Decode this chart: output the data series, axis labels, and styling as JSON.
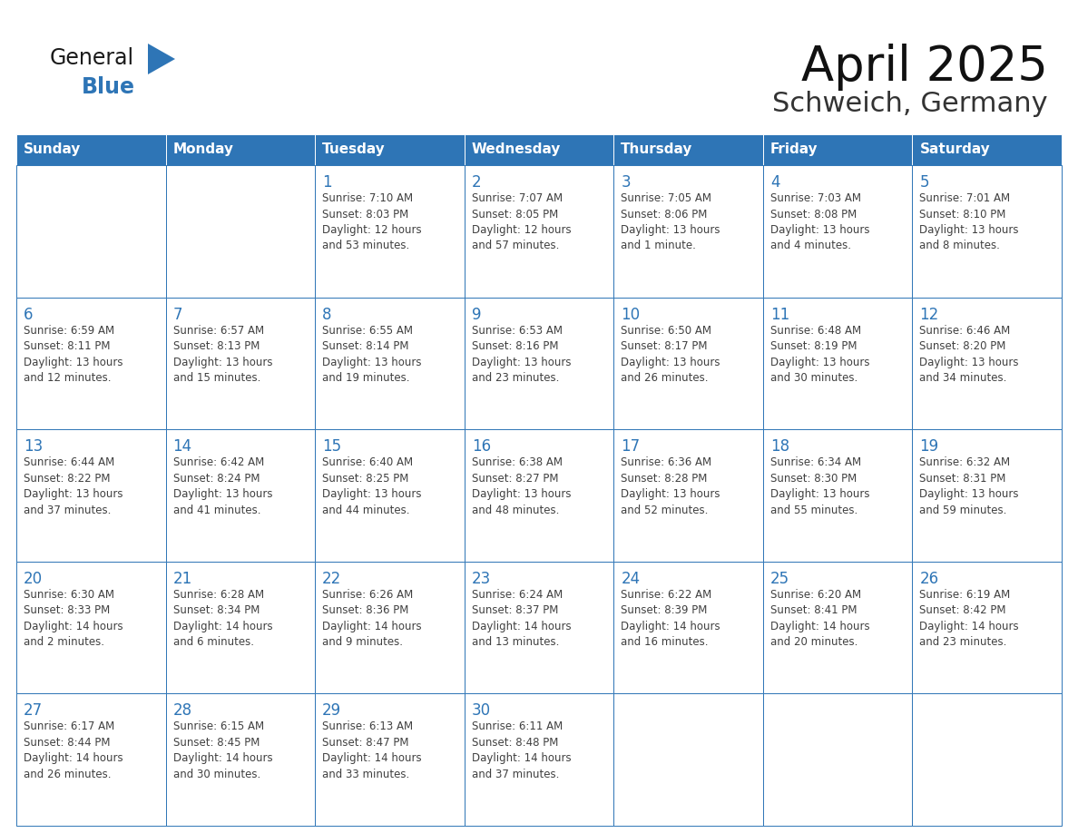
{
  "title": "April 2025",
  "subtitle": "Schweich, Germany",
  "header_bg": "#2E75B6",
  "header_text_color": "#FFFFFF",
  "border_color": "#2E75B6",
  "day_number_color": "#2E75B6",
  "cell_text_color": "#404040",
  "title_color": "#111111",
  "subtitle_color": "#333333",
  "days_of_week": [
    "Sunday",
    "Monday",
    "Tuesday",
    "Wednesday",
    "Thursday",
    "Friday",
    "Saturday"
  ],
  "calendar": [
    [
      {
        "day": "",
        "text": ""
      },
      {
        "day": "",
        "text": ""
      },
      {
        "day": "1",
        "text": "Sunrise: 7:10 AM\nSunset: 8:03 PM\nDaylight: 12 hours\nand 53 minutes."
      },
      {
        "day": "2",
        "text": "Sunrise: 7:07 AM\nSunset: 8:05 PM\nDaylight: 12 hours\nand 57 minutes."
      },
      {
        "day": "3",
        "text": "Sunrise: 7:05 AM\nSunset: 8:06 PM\nDaylight: 13 hours\nand 1 minute."
      },
      {
        "day": "4",
        "text": "Sunrise: 7:03 AM\nSunset: 8:08 PM\nDaylight: 13 hours\nand 4 minutes."
      },
      {
        "day": "5",
        "text": "Sunrise: 7:01 AM\nSunset: 8:10 PM\nDaylight: 13 hours\nand 8 minutes."
      }
    ],
    [
      {
        "day": "6",
        "text": "Sunrise: 6:59 AM\nSunset: 8:11 PM\nDaylight: 13 hours\nand 12 minutes."
      },
      {
        "day": "7",
        "text": "Sunrise: 6:57 AM\nSunset: 8:13 PM\nDaylight: 13 hours\nand 15 minutes."
      },
      {
        "day": "8",
        "text": "Sunrise: 6:55 AM\nSunset: 8:14 PM\nDaylight: 13 hours\nand 19 minutes."
      },
      {
        "day": "9",
        "text": "Sunrise: 6:53 AM\nSunset: 8:16 PM\nDaylight: 13 hours\nand 23 minutes."
      },
      {
        "day": "10",
        "text": "Sunrise: 6:50 AM\nSunset: 8:17 PM\nDaylight: 13 hours\nand 26 minutes."
      },
      {
        "day": "11",
        "text": "Sunrise: 6:48 AM\nSunset: 8:19 PM\nDaylight: 13 hours\nand 30 minutes."
      },
      {
        "day": "12",
        "text": "Sunrise: 6:46 AM\nSunset: 8:20 PM\nDaylight: 13 hours\nand 34 minutes."
      }
    ],
    [
      {
        "day": "13",
        "text": "Sunrise: 6:44 AM\nSunset: 8:22 PM\nDaylight: 13 hours\nand 37 minutes."
      },
      {
        "day": "14",
        "text": "Sunrise: 6:42 AM\nSunset: 8:24 PM\nDaylight: 13 hours\nand 41 minutes."
      },
      {
        "day": "15",
        "text": "Sunrise: 6:40 AM\nSunset: 8:25 PM\nDaylight: 13 hours\nand 44 minutes."
      },
      {
        "day": "16",
        "text": "Sunrise: 6:38 AM\nSunset: 8:27 PM\nDaylight: 13 hours\nand 48 minutes."
      },
      {
        "day": "17",
        "text": "Sunrise: 6:36 AM\nSunset: 8:28 PM\nDaylight: 13 hours\nand 52 minutes."
      },
      {
        "day": "18",
        "text": "Sunrise: 6:34 AM\nSunset: 8:30 PM\nDaylight: 13 hours\nand 55 minutes."
      },
      {
        "day": "19",
        "text": "Sunrise: 6:32 AM\nSunset: 8:31 PM\nDaylight: 13 hours\nand 59 minutes."
      }
    ],
    [
      {
        "day": "20",
        "text": "Sunrise: 6:30 AM\nSunset: 8:33 PM\nDaylight: 14 hours\nand 2 minutes."
      },
      {
        "day": "21",
        "text": "Sunrise: 6:28 AM\nSunset: 8:34 PM\nDaylight: 14 hours\nand 6 minutes."
      },
      {
        "day": "22",
        "text": "Sunrise: 6:26 AM\nSunset: 8:36 PM\nDaylight: 14 hours\nand 9 minutes."
      },
      {
        "day": "23",
        "text": "Sunrise: 6:24 AM\nSunset: 8:37 PM\nDaylight: 14 hours\nand 13 minutes."
      },
      {
        "day": "24",
        "text": "Sunrise: 6:22 AM\nSunset: 8:39 PM\nDaylight: 14 hours\nand 16 minutes."
      },
      {
        "day": "25",
        "text": "Sunrise: 6:20 AM\nSunset: 8:41 PM\nDaylight: 14 hours\nand 20 minutes."
      },
      {
        "day": "26",
        "text": "Sunrise: 6:19 AM\nSunset: 8:42 PM\nDaylight: 14 hours\nand 23 minutes."
      }
    ],
    [
      {
        "day": "27",
        "text": "Sunrise: 6:17 AM\nSunset: 8:44 PM\nDaylight: 14 hours\nand 26 minutes."
      },
      {
        "day": "28",
        "text": "Sunrise: 6:15 AM\nSunset: 8:45 PM\nDaylight: 14 hours\nand 30 minutes."
      },
      {
        "day": "29",
        "text": "Sunrise: 6:13 AM\nSunset: 8:47 PM\nDaylight: 14 hours\nand 33 minutes."
      },
      {
        "day": "30",
        "text": "Sunrise: 6:11 AM\nSunset: 8:48 PM\nDaylight: 14 hours\nand 37 minutes."
      },
      {
        "day": "",
        "text": ""
      },
      {
        "day": "",
        "text": ""
      },
      {
        "day": "",
        "text": ""
      }
    ]
  ]
}
